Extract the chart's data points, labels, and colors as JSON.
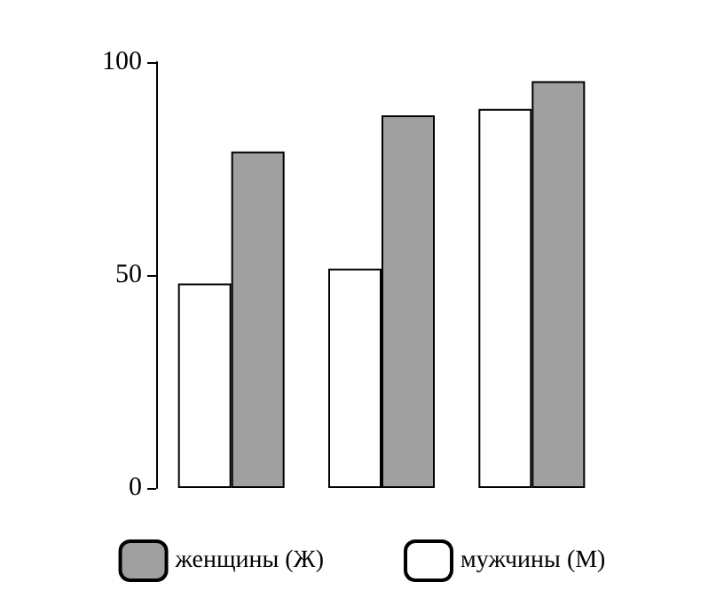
{
  "chart_data": {
    "type": "bar",
    "categories": [
      null,
      null,
      null
    ],
    "series": [
      {
        "name": "мужчины (М)",
        "color": "#ffffff",
        "values": [
          48,
          51.5,
          89
        ]
      },
      {
        "name": "женщины (Ж)",
        "color": "#a0a0a0",
        "values": [
          79,
          87.5,
          95.5
        ]
      }
    ],
    "ylim": [
      0,
      100
    ],
    "yticks": [
      0,
      50,
      100
    ],
    "grid": false,
    "legend": "bottom"
  }
}
